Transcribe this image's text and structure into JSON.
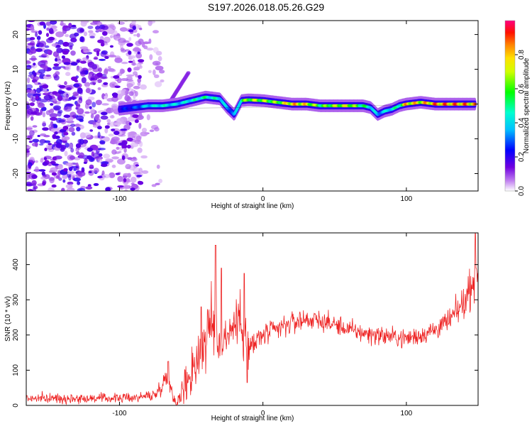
{
  "title": "S197.2026.018.05.26.G29",
  "chart_data": [
    {
      "type": "heatmap",
      "name": "spectrogram",
      "xlabel": "Height of straight line (km)",
      "ylabel": "Frequency (Hz)",
      "xlim": [
        -165,
        150
      ],
      "ylim": [
        -25,
        24
      ],
      "xticks": [
        -100,
        0,
        100
      ],
      "yticks": [
        -20,
        -10,
        0,
        10,
        20
      ],
      "colorbar": {
        "label": "Normalized spectral amplitude",
        "range": [
          0,
          1
        ],
        "ticks": [
          0.0,
          0.2,
          0.4,
          0.6,
          0.8
        ],
        "tick_labels": [
          "0.0",
          "0.2",
          "0.4",
          "0.6",
          "0.8"
        ],
        "colors": [
          "#ffffff",
          "#a020f0",
          "#0000ff",
          "#00ffff",
          "#00ff00",
          "#ffff00",
          "#ff8000",
          "#ff0000",
          "#ff00a0"
        ]
      },
      "ridge": {
        "x": [
          -100,
          -90,
          -80,
          -70,
          -60,
          -50,
          -40,
          -30,
          -25,
          -20,
          -15,
          -10,
          0,
          10,
          20,
          30,
          40,
          50,
          60,
          70,
          75,
          80,
          85,
          90,
          95,
          100,
          110,
          120,
          130,
          140,
          148
        ],
        "y": [
          -1.5,
          -1,
          -0.5,
          -0.5,
          0,
          1,
          2,
          1.5,
          -1,
          -3,
          1,
          1.2,
          1,
          0.5,
          0,
          0,
          -0.5,
          -0.5,
          -0.5,
          -0.5,
          -1,
          -3,
          -2,
          -1.5,
          -0.5,
          0,
          0.5,
          0,
          0,
          0,
          0
        ],
        "amplitude": [
          0.25,
          0.3,
          0.45,
          0.5,
          0.45,
          0.5,
          0.55,
          0.5,
          0.4,
          0.35,
          0.6,
          0.75,
          0.75,
          0.7,
          0.9,
          0.85,
          0.65,
          0.75,
          0.8,
          0.6,
          0.5,
          0.4,
          0.45,
          0.5,
          0.55,
          0.9,
          0.85,
          0.95,
          0.95,
          0.95,
          0.9
        ]
      },
      "noise_region_x": [
        -165,
        -85
      ],
      "noise_amplitude": 0.1
    },
    {
      "type": "line",
      "name": "snr",
      "xlabel": "Height of straight line (km)",
      "ylabel": "SNR (10 * v/v)",
      "xlim": [
        -165,
        150
      ],
      "ylim": [
        0,
        490
      ],
      "xticks": [
        -100,
        0,
        100
      ],
      "yticks": [
        0,
        100,
        200,
        300,
        400
      ],
      "color": "#ee2222",
      "envelope": {
        "x": [
          -165,
          -140,
          -110,
          -90,
          -75,
          -67,
          -65,
          -62,
          -60,
          -55,
          -50,
          -45,
          -40,
          -35,
          -30,
          -25,
          -20,
          -15,
          -12,
          -10,
          -5,
          0,
          10,
          20,
          30,
          40,
          50,
          60,
          70,
          80,
          90,
          100,
          110,
          120,
          130,
          140,
          145,
          150
        ],
        "mean": [
          20,
          20,
          20,
          22,
          30,
          80,
          60,
          20,
          5,
          50,
          100,
          140,
          190,
          230,
          180,
          200,
          230,
          250,
          200,
          150,
          180,
          200,
          215,
          235,
          245,
          240,
          230,
          215,
          205,
          200,
          195,
          190,
          200,
          215,
          240,
          290,
          340,
          400
        ],
        "spread": [
          12,
          12,
          12,
          12,
          15,
          25,
          30,
          20,
          10,
          50,
          70,
          80,
          90,
          100,
          60,
          60,
          60,
          70,
          90,
          70,
          40,
          30,
          30,
          30,
          28,
          25,
          25,
          25,
          25,
          25,
          25,
          25,
          25,
          28,
          30,
          40,
          50,
          70
        ]
      },
      "spikes": [
        {
          "x": -33,
          "y": 455
        },
        {
          "x": -29,
          "y": 390
        },
        {
          "x": -13,
          "y": 375
        },
        {
          "x": -11,
          "y": 65
        },
        {
          "x": -43,
          "y": 280
        },
        {
          "x": -66,
          "y": 125
        },
        {
          "x": 148,
          "y": 488
        }
      ]
    }
  ]
}
